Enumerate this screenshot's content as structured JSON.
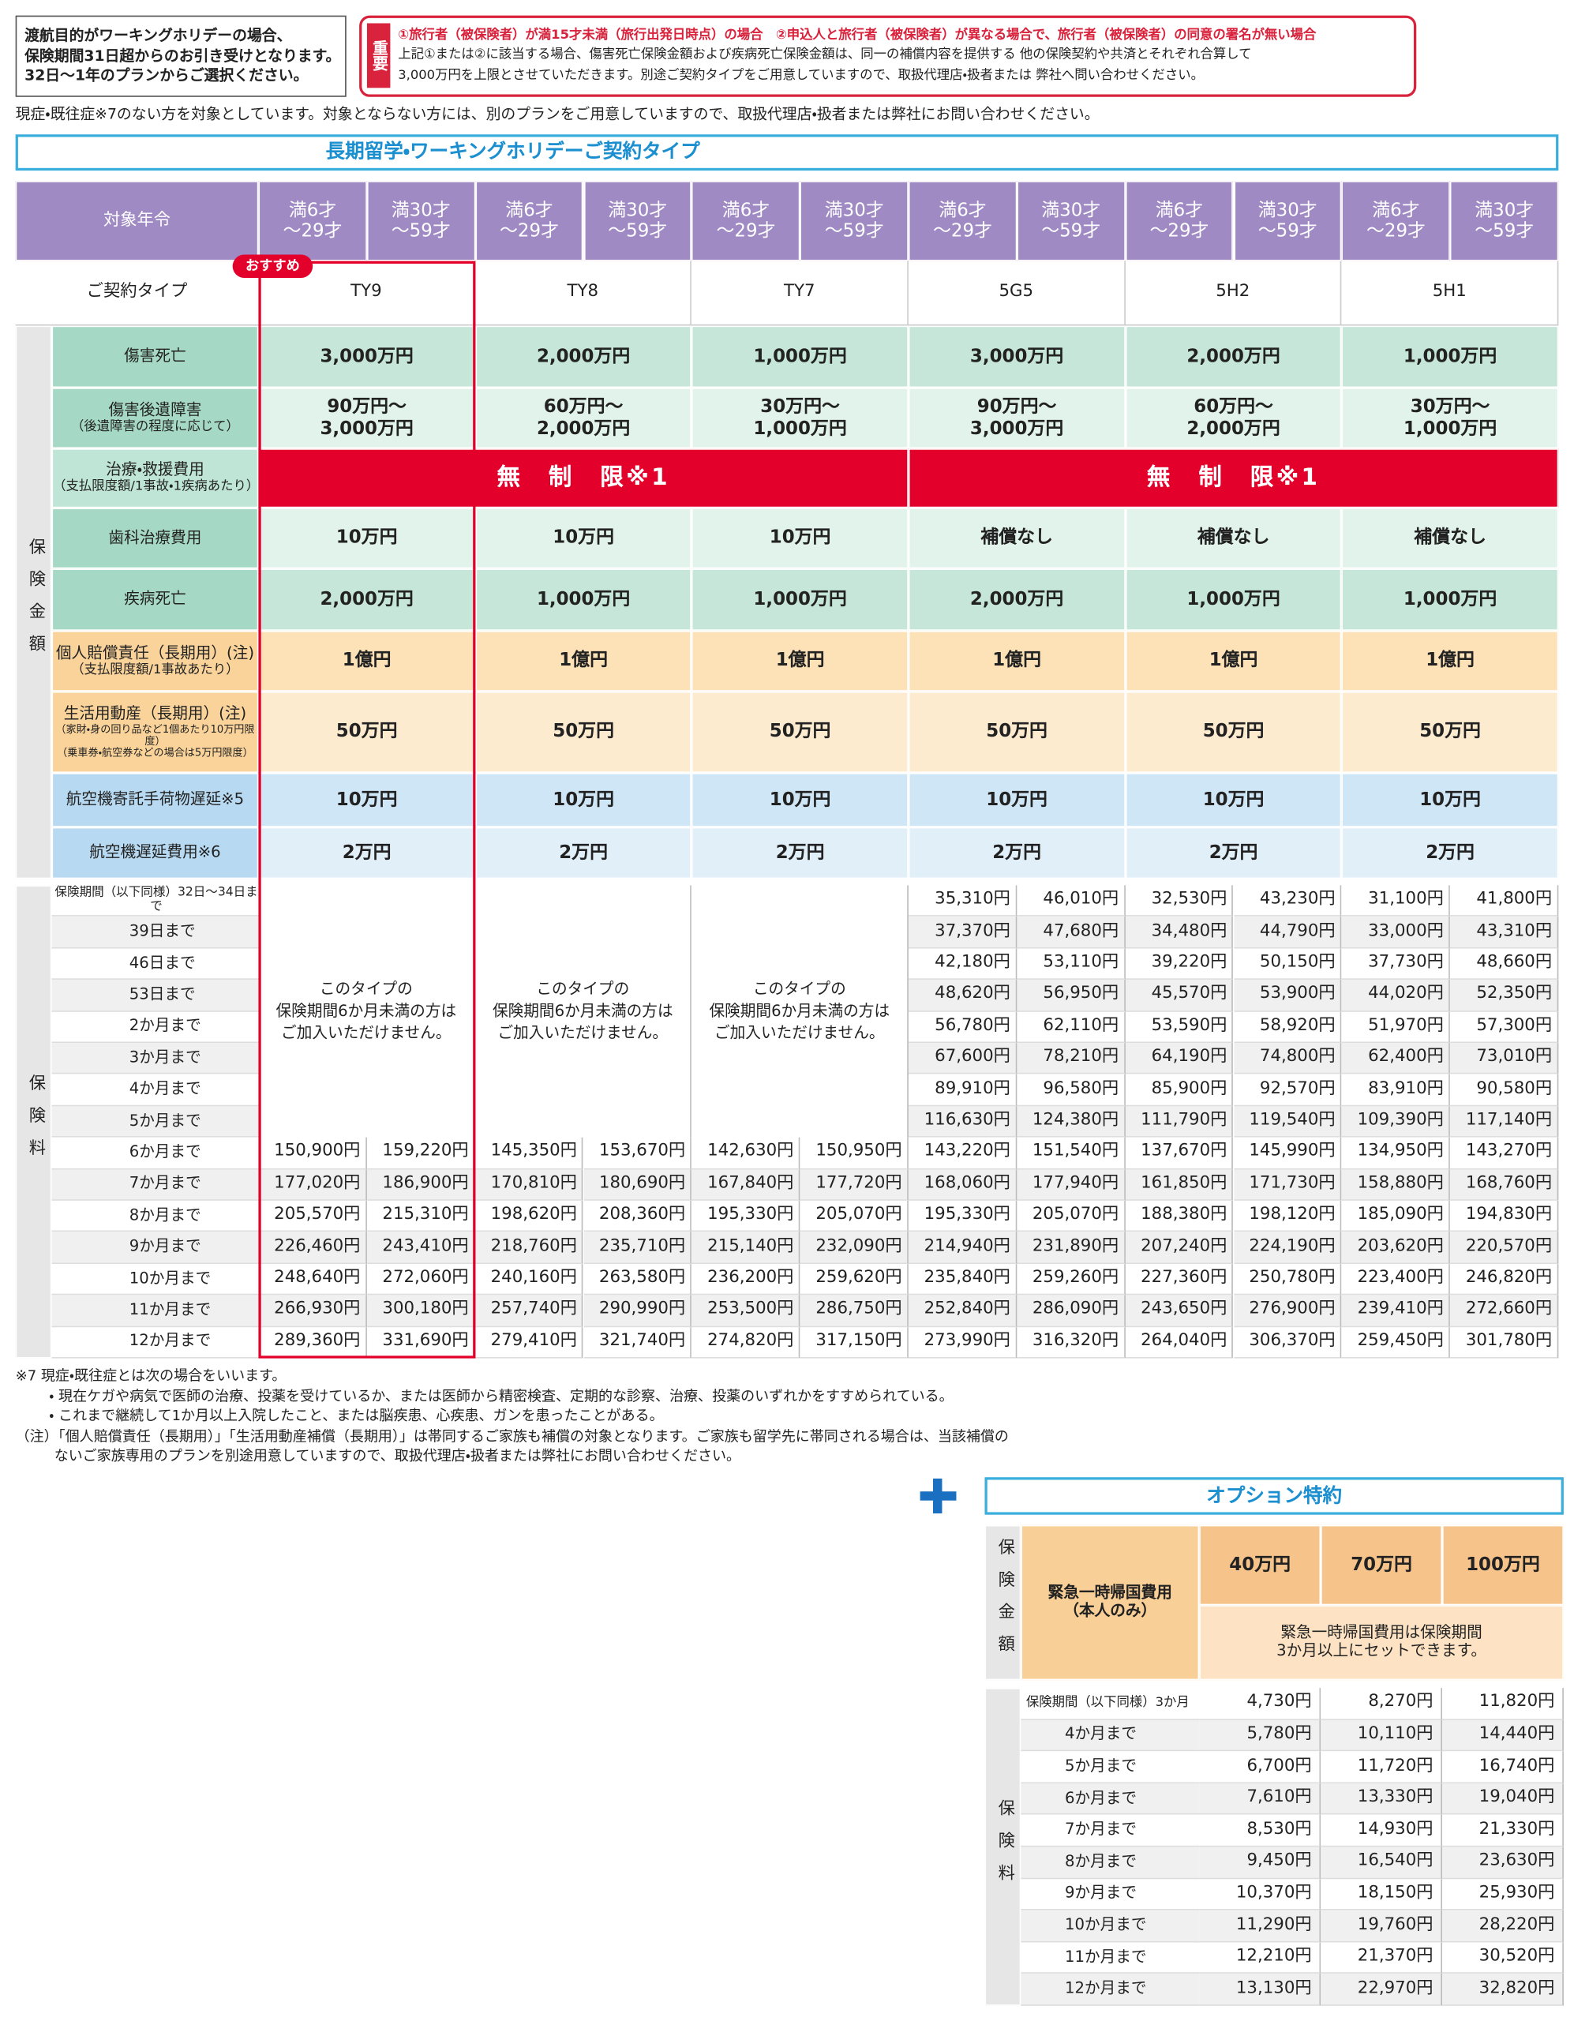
{
  "header_note": "渡航目的がワーキングホリデーの場合、\n保険期間31日超からのお引き受けとなります。\n32日〜1年のプランからご選択ください。",
  "important": {
    "label": "重要",
    "lines": [
      "①旅行者（被保険者）が満15才未満（旅行出発日時点）の場合　②申込人と旅行者（被保険者）が異なる場合で、旅行者（被保険者）の同意の署名が無い場合",
      "上記①または②に該当する場合、傷害死亡保険金額および疾病死亡保険金額は、同一の補償内容を提供する 他の保険契約や共済とそれぞれ合算して",
      "3,000万円を上限とさせていただきます。別途ご契約タイプをご用意していますので、取扱代理店・扱者または 弊社へ問い合わせください。"
    ]
  },
  "notice": "現症・既往症※7のない方を対象としています。対象とならない方には、別のプランをご用意していますので、取扱代理店・扱者または弊社にお問い合わせください。",
  "main": {
    "title": "長期留学・ワーキングホリデーご契約タイプ",
    "age_label": "対象年令",
    "ages": [
      "満6才\n〜29才",
      "満30才\n〜59才",
      "満6才\n〜29才",
      "満30才\n〜59才",
      "満6才\n〜29才",
      "満30才\n〜59才",
      "満6才\n〜29才",
      "満30才\n〜59才",
      "満6才\n〜29才",
      "満30才\n〜59才",
      "満6才\n〜29才",
      "満30才\n〜59才"
    ],
    "type_label": "ご契約タイプ",
    "recommend": "おすすめ",
    "types": [
      "TY9",
      "TY8",
      "TY7",
      "5G5",
      "5H2",
      "5H1"
    ],
    "coverage_side": "保険金額",
    "coverage": [
      {
        "label": "傷害死亡",
        "values": [
          "3,000万円",
          "2,000万円",
          "1,000万円",
          "3,000万円",
          "2,000万円",
          "1,000万円"
        ]
      },
      {
        "label": "傷害後遺障害",
        "sub": "（後遺障害の程度に応じて）",
        "values": [
          "90万円〜\n3,000万円",
          "60万円〜\n2,000万円",
          "30万円〜\n1,000万円",
          "90万円〜\n3,000万円",
          "60万円〜\n2,000万円",
          "30万円〜\n1,000万円"
        ]
      },
      {
        "label": "治療・救援費用",
        "sub": "（支払限度額/1事故・1疾病あたり）",
        "values": [
          "無　制　限※1",
          "無　制　限※1"
        ]
      },
      {
        "label": "歯科治療費用",
        "values": [
          "10万円",
          "10万円",
          "10万円",
          "補償なし",
          "補償なし",
          "補償なし"
        ]
      },
      {
        "label": "疾病死亡",
        "values": [
          "2,000万円",
          "1,000万円",
          "1,000万円",
          "2,000万円",
          "1,000万円",
          "1,000万円"
        ]
      },
      {
        "label": "個人賠償責任（長期用）(注)",
        "sub": "（支払限度額/1事故あたり）",
        "values": [
          "1億円",
          "1億円",
          "1億円",
          "1億円",
          "1億円",
          "1億円"
        ]
      },
      {
        "label": "生活用動産（長期用）(注)",
        "sub": "（家財・身の回り品など1個あたり10万円限度）\n（乗車券・航空券などの場合は5万円限度）",
        "values": [
          "50万円",
          "50万円",
          "50万円",
          "50万円",
          "50万円",
          "50万円"
        ]
      },
      {
        "label": "航空機寄託手荷物遅延※5",
        "values": [
          "10万円",
          "10万円",
          "10万円",
          "10万円",
          "10万円",
          "10万円"
        ]
      },
      {
        "label": "航空機遅延費用※6",
        "values": [
          "2万円",
          "2万円",
          "2万円",
          "2万円",
          "2万円",
          "2万円"
        ]
      }
    ],
    "premium_side": "保険料",
    "unavailable": [
      "このタイプの\n保険期間6か月未満の方は\nご加入いただけません。",
      "このタイプの\n保険期間6か月未満の方は\nご加入いただけません。",
      "このタイプの\n保険期間6か月未満の方は\nご加入いただけません。"
    ],
    "premium_rows": [
      {
        "label": "保険期間（以下同様）32日〜34日まで",
        "values": [
          null,
          null,
          null,
          null,
          null,
          null,
          "35,310円",
          "46,010円",
          "32,530円",
          "43,230円",
          "31,100円",
          "41,800円"
        ]
      },
      {
        "label": "39日まで",
        "values": [
          null,
          null,
          null,
          null,
          null,
          null,
          "37,370円",
          "47,680円",
          "34,480円",
          "44,790円",
          "33,000円",
          "43,310円"
        ]
      },
      {
        "label": "46日まで",
        "values": [
          null,
          null,
          null,
          null,
          null,
          null,
          "42,180円",
          "53,110円",
          "39,220円",
          "50,150円",
          "37,730円",
          "48,660円"
        ]
      },
      {
        "label": "53日まで",
        "values": [
          null,
          null,
          null,
          null,
          null,
          null,
          "48,620円",
          "56,950円",
          "45,570円",
          "53,900円",
          "44,020円",
          "52,350円"
        ]
      },
      {
        "label": "2か月まで",
        "values": [
          null,
          null,
          null,
          null,
          null,
          null,
          "56,780円",
          "62,110円",
          "53,590円",
          "58,920円",
          "51,970円",
          "57,300円"
        ]
      },
      {
        "label": "3か月まで",
        "values": [
          null,
          null,
          null,
          null,
          null,
          null,
          "67,600円",
          "78,210円",
          "64,190円",
          "74,800円",
          "62,400円",
          "73,010円"
        ]
      },
      {
        "label": "4か月まで",
        "values": [
          null,
          null,
          null,
          null,
          null,
          null,
          "89,910円",
          "96,580円",
          "85,900円",
          "92,570円",
          "83,910円",
          "90,580円"
        ]
      },
      {
        "label": "5か月まで",
        "values": [
          null,
          null,
          null,
          null,
          null,
          null,
          "116,630円",
          "124,380円",
          "111,790円",
          "119,540円",
          "109,390円",
          "117,140円"
        ]
      },
      {
        "label": "6か月まで",
        "values": [
          "150,900円",
          "159,220円",
          "145,350円",
          "153,670円",
          "142,630円",
          "150,950円",
          "143,220円",
          "151,540円",
          "137,670円",
          "145,990円",
          "134,950円",
          "143,270円"
        ]
      },
      {
        "label": "7か月まで",
        "values": [
          "177,020円",
          "186,900円",
          "170,810円",
          "180,690円",
          "167,840円",
          "177,720円",
          "168,060円",
          "177,940円",
          "161,850円",
          "171,730円",
          "158,880円",
          "168,760円"
        ]
      },
      {
        "label": "8か月まで",
        "values": [
          "205,570円",
          "215,310円",
          "198,620円",
          "208,360円",
          "195,330円",
          "205,070円",
          "195,330円",
          "205,070円",
          "188,380円",
          "198,120円",
          "185,090円",
          "194,830円"
        ]
      },
      {
        "label": "9か月まで",
        "values": [
          "226,460円",
          "243,410円",
          "218,760円",
          "235,710円",
          "215,140円",
          "232,090円",
          "214,940円",
          "231,890円",
          "207,240円",
          "224,190円",
          "203,620円",
          "220,570円"
        ]
      },
      {
        "label": "10か月まで",
        "values": [
          "248,640円",
          "272,060円",
          "240,160円",
          "263,580円",
          "236,200円",
          "259,620円",
          "235,840円",
          "259,260円",
          "227,360円",
          "250,780円",
          "223,400円",
          "246,820円"
        ]
      },
      {
        "label": "11か月まで",
        "values": [
          "266,930円",
          "300,180円",
          "257,740円",
          "290,990円",
          "253,500円",
          "286,750円",
          "252,840円",
          "286,090円",
          "243,650円",
          "276,900円",
          "239,410円",
          "272,660円"
        ]
      },
      {
        "label": "12か月まで",
        "values": [
          "289,360円",
          "331,690円",
          "279,410円",
          "321,740円",
          "274,820円",
          "317,150円",
          "273,990円",
          "316,320円",
          "264,040円",
          "306,370円",
          "259,450円",
          "301,780円"
        ]
      }
    ]
  },
  "footnotes": [
    "※7 現症・既往症とは次の場合をいいます。",
    "・ 現在ケガや病気で医師の治療、投薬を受けているか、または医師から精密検査、定期的な診察、治療、投薬のいずれかをすすめられている。",
    "・ これまで継続して1か月以上入院したこと、または脳疾患、心疾患、ガンを患ったことがある。",
    "（注）「個人賠償責任（長期用）」「生活用動産補償（長期用）」は帯同するご家族も補償の対象となります。ご家族も留学先に帯同される場合は、当該補償の",
    "ないご家族専用のプランを別途用意していますので、取扱代理店・扱者または弊社にお問い合わせください。"
  ],
  "option": {
    "title": "オプション特約",
    "side_amount": "保険金額",
    "side_premium": "保険料",
    "label": "緊急一時帰国費用\n（本人のみ）",
    "amounts": [
      "40万円",
      "70万円",
      "100万円"
    ],
    "amount_note": "緊急一時帰国費用は保険期間\n3か月以上にセットできます。",
    "rows": [
      {
        "label": "保険期間（以下同様）3か月",
        "values": [
          "4,730円",
          "8,270円",
          "11,820円"
        ]
      },
      {
        "label": "4か月まで",
        "values": [
          "5,780円",
          "10,110円",
          "14,440円"
        ]
      },
      {
        "label": "5か月まで",
        "values": [
          "6,700円",
          "11,720円",
          "16,740円"
        ]
      },
      {
        "label": "6か月まで",
        "values": [
          "7,610円",
          "13,330円",
          "19,040円"
        ]
      },
      {
        "label": "7か月まで",
        "values": [
          "8,530円",
          "14,930円",
          "21,330円"
        ]
      },
      {
        "label": "8か月まで",
        "values": [
          "9,450円",
          "16,540円",
          "23,630円"
        ]
      },
      {
        "label": "9か月まで",
        "values": [
          "10,370円",
          "18,150円",
          "25,930円"
        ]
      },
      {
        "label": "10か月まで",
        "values": [
          "11,290円",
          "19,760円",
          "28,220円"
        ]
      },
      {
        "label": "11か月まで",
        "values": [
          "12,210円",
          "21,370円",
          "30,520円"
        ]
      },
      {
        "label": "12か月まで",
        "values": [
          "13,130円",
          "22,970円",
          "32,820円"
        ]
      }
    ]
  }
}
